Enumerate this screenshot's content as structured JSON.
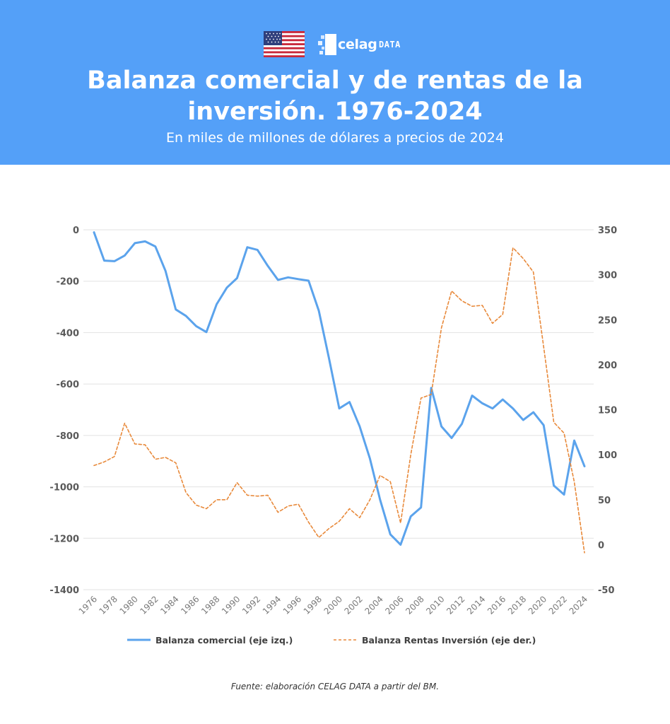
{
  "header": {
    "brand_name": "celag",
    "brand_suffix": "DATA",
    "flag_icon": "usa-flag-icon",
    "title_line1": "Balanza comercial y de rentas de la",
    "title_line2": "inversión. 1976-2024",
    "subtitle": "En miles de millones de dólares a precios de 2024"
  },
  "colors": {
    "header_bg": "#54a0f8",
    "series_left": "#5ba3ec",
    "series_right": "#e8893a",
    "grid": "#e2e2e2",
    "tick_text": "#595959"
  },
  "chart_data": {
    "type": "line",
    "x": [
      1976,
      1977,
      1978,
      1979,
      1980,
      1981,
      1982,
      1983,
      1984,
      1985,
      1986,
      1987,
      1988,
      1989,
      1990,
      1991,
      1992,
      1993,
      1994,
      1995,
      1996,
      1997,
      1998,
      1999,
      2000,
      2001,
      2002,
      2003,
      2004,
      2005,
      2006,
      2007,
      2008,
      2009,
      2010,
      2011,
      2012,
      2013,
      2014,
      2015,
      2016,
      2017,
      2018,
      2019,
      2020,
      2021,
      2022,
      2023,
      2024
    ],
    "x_tick_labels": [
      "1976",
      "1978",
      "1980",
      "1982",
      "1984",
      "1986",
      "1988",
      "1990",
      "1992",
      "1994",
      "1996",
      "1998",
      "2000",
      "2002",
      "2004",
      "2006",
      "2008",
      "2010",
      "2012",
      "2014",
      "2016",
      "2018",
      "2020",
      "2022",
      "2024"
    ],
    "series": [
      {
        "name": "Balanza comercial (eje izq.)",
        "axis": "left",
        "style": "solid",
        "values": [
          -10,
          -120,
          -122,
          -100,
          -52,
          -45,
          -65,
          -160,
          -310,
          -335,
          -375,
          -398,
          -290,
          -225,
          -188,
          -68,
          -78,
          -140,
          -195,
          -185,
          -192,
          -198,
          -315,
          -500,
          -695,
          -670,
          -765,
          -890,
          -1050,
          -1185,
          -1225,
          -1115,
          -1080,
          -615,
          -765,
          -810,
          -755,
          -645,
          -675,
          -695,
          -660,
          -695,
          -740,
          -710,
          -760,
          -995,
          -1030,
          -820,
          -920
        ]
      },
      {
        "name": "Balanza Rentas Inversión (eje der.)",
        "axis": "right",
        "style": "dashed",
        "values": [
          88,
          92,
          98,
          135,
          112,
          111,
          95,
          97,
          91,
          58,
          44,
          40,
          50,
          50,
          69,
          55,
          54,
          55,
          36,
          43,
          45,
          25,
          8,
          18,
          26,
          40,
          30,
          50,
          77,
          70,
          24,
          100,
          163,
          167,
          241,
          282,
          271,
          265,
          266,
          246,
          256,
          330,
          318,
          303,
          220,
          136,
          124,
          70,
          -9
        ]
      }
    ],
    "y_left": {
      "min": -1400,
      "max": 0,
      "ticks": [
        0,
        -200,
        -400,
        -600,
        -800,
        -1000,
        -1200,
        -1400
      ]
    },
    "y_right": {
      "min": -50,
      "max": 350,
      "ticks": [
        350,
        300,
        250,
        200,
        150,
        100,
        50,
        0,
        -50
      ]
    },
    "grid": true,
    "legend_position": "bottom",
    "xlabel": "",
    "ylabel": ""
  },
  "footer": {
    "source": "Fuente: elaboración CELAG DATA a partir del BM."
  }
}
